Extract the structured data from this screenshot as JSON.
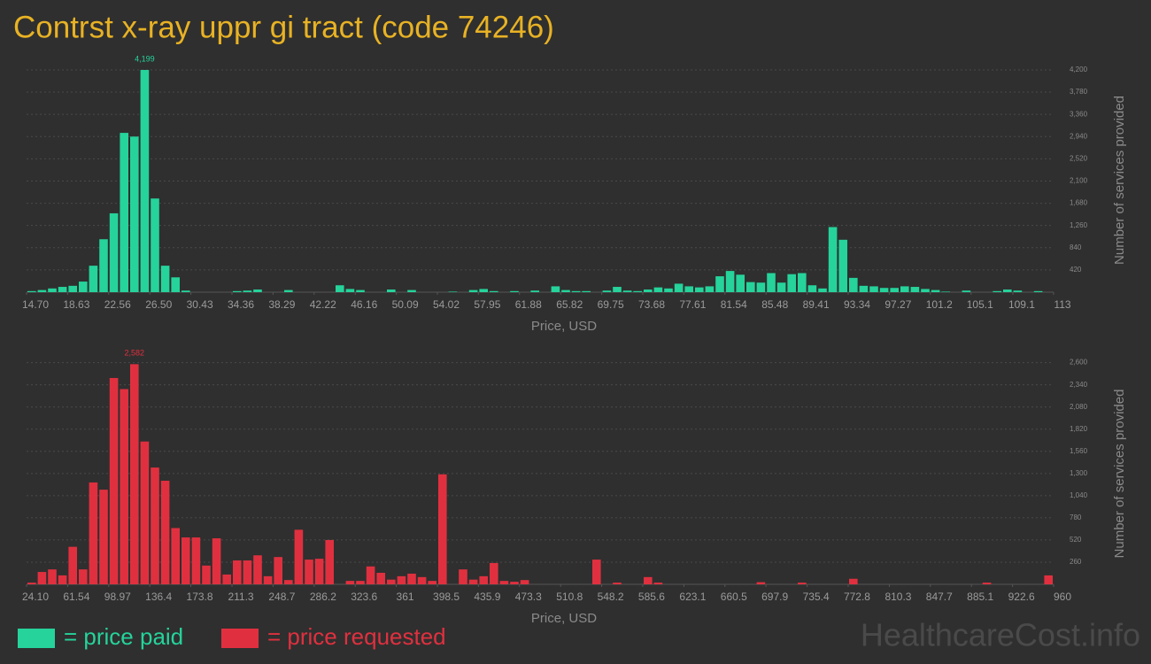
{
  "title": "Contrst x-ray uppr gi tract (code 74246)",
  "watermark": "HealthcareCost.info",
  "chart_data": [
    {
      "type": "histogram",
      "xlabel": "Price, USD",
      "ylabel": "Number of services provided",
      "grid": true,
      "bins": [
        14.7,
        15.683,
        16.666,
        17.649,
        18.632,
        19.615,
        20.598,
        21.581,
        22.564,
        23.547,
        24.53,
        25.513,
        26.496,
        27.479,
        28.462,
        29.445,
        30.428,
        31.411,
        32.394,
        33.377,
        34.36,
        35.343,
        36.326,
        37.309,
        38.292,
        39.275,
        40.258,
        41.241,
        42.224,
        43.207,
        44.19,
        45.173,
        46.156,
        47.139,
        48.122,
        49.105,
        50.088,
        51.071,
        52.054,
        53.037,
        54.02,
        55.003,
        55.986,
        56.969,
        57.952,
        58.935,
        59.918,
        60.901,
        61.884,
        62.867,
        63.85,
        64.833,
        65.816,
        66.799,
        67.782,
        68.765,
        69.748,
        70.731,
        71.714,
        72.697,
        73.68,
        74.663,
        75.646,
        76.629,
        77.612,
        78.595,
        79.578,
        80.561,
        81.544,
        82.527,
        83.51,
        84.493,
        85.476,
        86.459,
        87.442,
        88.425,
        89.408,
        90.391,
        91.374,
        92.357,
        93.34,
        94.323,
        95.306,
        96.289,
        97.272,
        98.255,
        99.238,
        100.221,
        101.204,
        102.187,
        103.17,
        104.153,
        105.136,
        106.119,
        107.102,
        108.085,
        109.068,
        110.051,
        111.034,
        112.017,
        113
      ],
      "series": [
        {
          "name": "= price paid",
          "color": "#25d39b",
          "values": [
            20,
            40,
            70,
            100,
            120,
            200,
            500,
            1000,
            1490,
            3010,
            2940,
            4199,
            1770,
            500,
            280,
            30,
            0,
            0,
            0,
            0,
            20,
            30,
            50,
            0,
            0,
            40,
            0,
            0,
            0,
            0,
            130,
            60,
            40,
            0,
            0,
            50,
            0,
            40,
            0,
            0,
            0,
            10,
            0,
            40,
            60,
            20,
            0,
            20,
            0,
            30,
            0,
            110,
            40,
            20,
            20,
            0,
            30,
            100,
            30,
            20,
            50,
            90,
            70,
            160,
            110,
            90,
            110,
            300,
            400,
            330,
            190,
            180,
            360,
            180,
            340,
            360,
            130,
            70,
            1230,
            990,
            270,
            120,
            110,
            80,
            80,
            110,
            100,
            60,
            40,
            10,
            0,
            30,
            0,
            0,
            20,
            50,
            30,
            0,
            20,
            0
          ],
          "value_labels": [
            null,
            null,
            null,
            null,
            null,
            null,
            null,
            null,
            null,
            null,
            null,
            "4,199",
            null,
            null,
            null,
            null,
            null,
            null,
            null,
            null,
            null,
            null,
            null,
            null,
            null,
            null,
            null,
            null,
            null,
            null,
            null,
            null,
            null,
            null,
            null,
            null,
            null,
            null,
            null,
            null,
            null,
            null,
            null,
            null,
            null,
            null,
            null,
            null,
            null,
            null,
            null,
            null,
            null,
            null,
            null,
            null,
            null,
            null,
            null,
            null,
            null,
            null,
            null,
            null,
            null,
            null,
            null,
            null,
            null,
            null,
            null,
            null,
            null,
            null,
            null,
            null,
            null,
            null,
            null,
            null,
            null,
            null,
            null,
            null,
            null,
            null,
            null,
            null,
            null,
            null,
            null,
            null,
            null,
            null,
            null,
            null,
            null,
            null,
            null,
            null
          ]
        }
      ],
      "xlim": [
        14.7,
        113
      ],
      "ylim": [
        0,
        4400
      ],
      "xticks": [
        {
          "value": 14.7,
          "label": "14.70"
        },
        18.63,
        22.56,
        {
          "value": 26.5,
          "label": "26.50"
        },
        30.43,
        34.36,
        38.29,
        42.22,
        46.16,
        50.09,
        54.02,
        57.95,
        61.88,
        65.82,
        69.75,
        73.68,
        77.61,
        81.54,
        85.48,
        89.41,
        93.34,
        97.27,
        101.2,
        105.1,
        109.1,
        113
      ],
      "yticks": [
        420,
        840,
        {
          "value": 1260,
          "label": "1,260"
        },
        {
          "value": 1680,
          "label": "1,680"
        },
        {
          "value": 2100,
          "label": "2,100"
        },
        {
          "value": 2520,
          "label": "2,520"
        },
        {
          "value": 2940,
          "label": "2,940"
        },
        {
          "value": 3360,
          "label": "3,360"
        },
        {
          "value": 3780,
          "label": "3,780"
        },
        {
          "value": 4200,
          "label": "4,200"
        }
      ]
    },
    {
      "type": "histogram",
      "xlabel": "Price, USD",
      "ylabel": "Number of services provided",
      "grid": true,
      "bins": [
        24.1,
        33.459,
        42.818,
        52.177,
        61.536,
        70.895,
        80.254,
        89.613,
        98.972,
        108.331,
        117.69,
        127.049,
        136.408,
        145.767,
        155.126,
        164.485,
        173.844,
        183.203,
        192.562,
        201.921,
        211.28,
        220.639,
        229.998,
        239.357,
        248.716,
        258.075,
        267.434,
        276.793,
        286.152,
        295.511,
        304.87,
        314.229,
        323.588,
        332.947,
        342.306,
        351.665,
        361.024,
        370.383,
        379.742,
        389.101,
        398.46,
        407.819,
        417.178,
        426.537,
        435.896,
        445.255,
        454.614,
        463.973,
        473.332,
        482.691,
        492.05,
        501.409,
        510.768,
        520.127,
        529.486,
        538.845,
        548.204,
        557.563,
        566.922,
        576.281,
        585.64,
        594.999,
        604.358,
        613.717,
        623.076,
        632.435,
        641.794,
        651.153,
        660.512,
        669.871,
        679.23,
        688.589,
        697.948,
        707.307,
        716.666,
        726.025,
        735.384,
        744.743,
        754.102,
        763.461,
        772.82,
        782.179,
        791.538,
        800.897,
        810.256,
        819.615,
        828.974,
        838.333,
        847.692,
        857.051,
        866.41,
        875.769,
        885.128,
        894.487,
        903.846,
        913.205,
        922.564,
        931.923,
        941.282,
        950.641,
        960
      ],
      "series": [
        {
          "name": "= price requested",
          "color": "#e0303f",
          "values": [
            20,
            145,
            175,
            105,
            440,
            175,
            1195,
            1110,
            2420,
            2290,
            2582,
            1675,
            1370,
            1215,
            660,
            550,
            550,
            220,
            540,
            115,
            280,
            280,
            340,
            95,
            320,
            50,
            640,
            290,
            300,
            520,
            0,
            40,
            40,
            210,
            135,
            55,
            95,
            125,
            85,
            40,
            1290,
            0,
            175,
            55,
            95,
            250,
            40,
            30,
            50,
            0,
            0,
            0,
            0,
            0,
            0,
            290,
            0,
            20,
            0,
            0,
            85,
            20,
            0,
            0,
            0,
            0,
            0,
            0,
            0,
            0,
            0,
            25,
            0,
            0,
            0,
            20,
            0,
            0,
            0,
            0,
            65,
            0,
            0,
            0,
            0,
            0,
            0,
            0,
            0,
            0,
            0,
            0,
            0,
            20,
            0,
            0,
            0,
            0,
            0,
            105
          ],
          "value_labels": [
            null,
            null,
            null,
            null,
            null,
            null,
            null,
            null,
            null,
            null,
            "2,582",
            null,
            null,
            null,
            null,
            null,
            null,
            null,
            null,
            null,
            null,
            null,
            null,
            null,
            null,
            null,
            null,
            null,
            null,
            null,
            null,
            null,
            null,
            null,
            null,
            null,
            null,
            null,
            null,
            null,
            null,
            null,
            null,
            null,
            null,
            null,
            null,
            null,
            null,
            null,
            null,
            null,
            null,
            null,
            null,
            null,
            null,
            null,
            null,
            null,
            null,
            null,
            null,
            null,
            null,
            null,
            null,
            null,
            null,
            null,
            null,
            null,
            null,
            null,
            null,
            null,
            null,
            null,
            null,
            null,
            null,
            null,
            null,
            null,
            null,
            null,
            null,
            null,
            null,
            null,
            null,
            null,
            null,
            null,
            null,
            null,
            null,
            null,
            null,
            null
          ]
        }
      ],
      "xlim": [
        24.1,
        960
      ],
      "ylim": [
        0,
        2700
      ],
      "xticks": [
        {
          "value": 24.1,
          "label": "24.10"
        },
        61.54,
        98.97,
        136.4,
        173.8,
        211.3,
        248.7,
        286.2,
        323.6,
        361,
        398.5,
        435.9,
        473.3,
        510.8,
        548.2,
        585.6,
        623.1,
        660.5,
        697.9,
        735.4,
        772.8,
        810.3,
        847.7,
        885.1,
        922.6,
        960
      ],
      "yticks": [
        260,
        520,
        780,
        {
          "value": 1040,
          "label": "1,040"
        },
        {
          "value": 1300,
          "label": "1,300"
        },
        {
          "value": 1560,
          "label": "1,560"
        },
        {
          "value": 1820,
          "label": "1,820"
        },
        {
          "value": 2080,
          "label": "2,080"
        },
        {
          "value": 2340,
          "label": "2,340"
        },
        {
          "value": 2600,
          "label": "2,600"
        }
      ]
    }
  ]
}
